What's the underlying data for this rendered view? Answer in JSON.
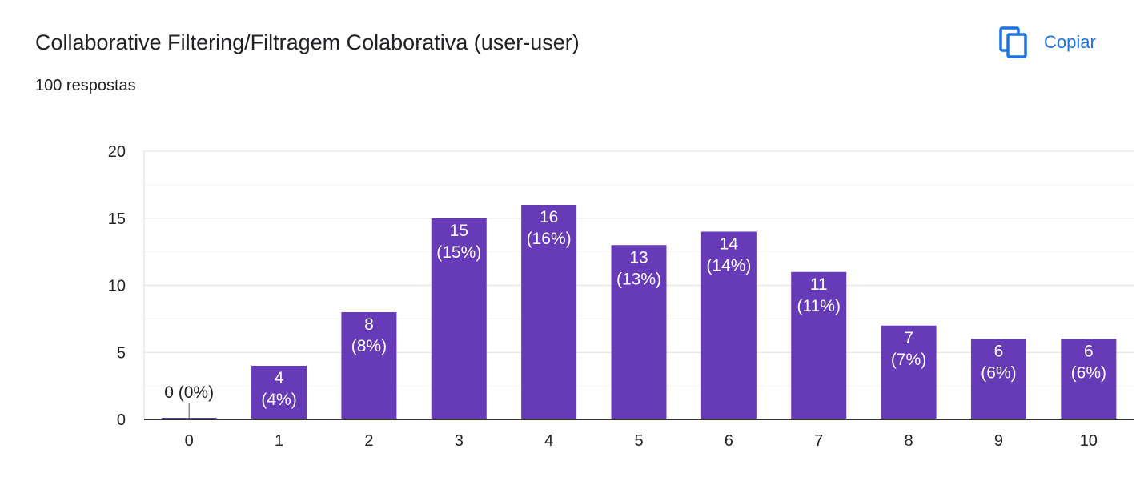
{
  "header": {
    "title": "Collaborative Filtering/Filtragem Colaborativa (user-user)",
    "response_count": "100 respostas",
    "copy_label": "Copiar",
    "copy_icon": "copy-icon"
  },
  "colors": {
    "bar": "#673ab7",
    "accent": "#1a73e8",
    "gridline": "#e8e8e8",
    "axis": "#333333",
    "text": "#202124",
    "bar_label": "#ffffff"
  },
  "chart_data": {
    "type": "bar",
    "categories": [
      "0",
      "1",
      "2",
      "3",
      "4",
      "5",
      "6",
      "7",
      "8",
      "9",
      "10"
    ],
    "values": [
      0,
      4,
      8,
      15,
      16,
      13,
      14,
      11,
      7,
      6,
      6
    ],
    "data_labels": [
      [
        "0 (0%)"
      ],
      [
        "4",
        "(4%)"
      ],
      [
        "8",
        "(8%)"
      ],
      [
        "15",
        "(15%)"
      ],
      [
        "16",
        "(16%)"
      ],
      [
        "13",
        "(13%)"
      ],
      [
        "14",
        "(14%)"
      ],
      [
        "11",
        "(11%)"
      ],
      [
        "7",
        "(7%)"
      ],
      [
        "6",
        "(6%)"
      ],
      [
        "6",
        "(6%)"
      ]
    ],
    "yticks": [
      0,
      5,
      10,
      15,
      20
    ],
    "ylim": [
      0,
      20
    ],
    "grid": true,
    "legend": "none"
  }
}
